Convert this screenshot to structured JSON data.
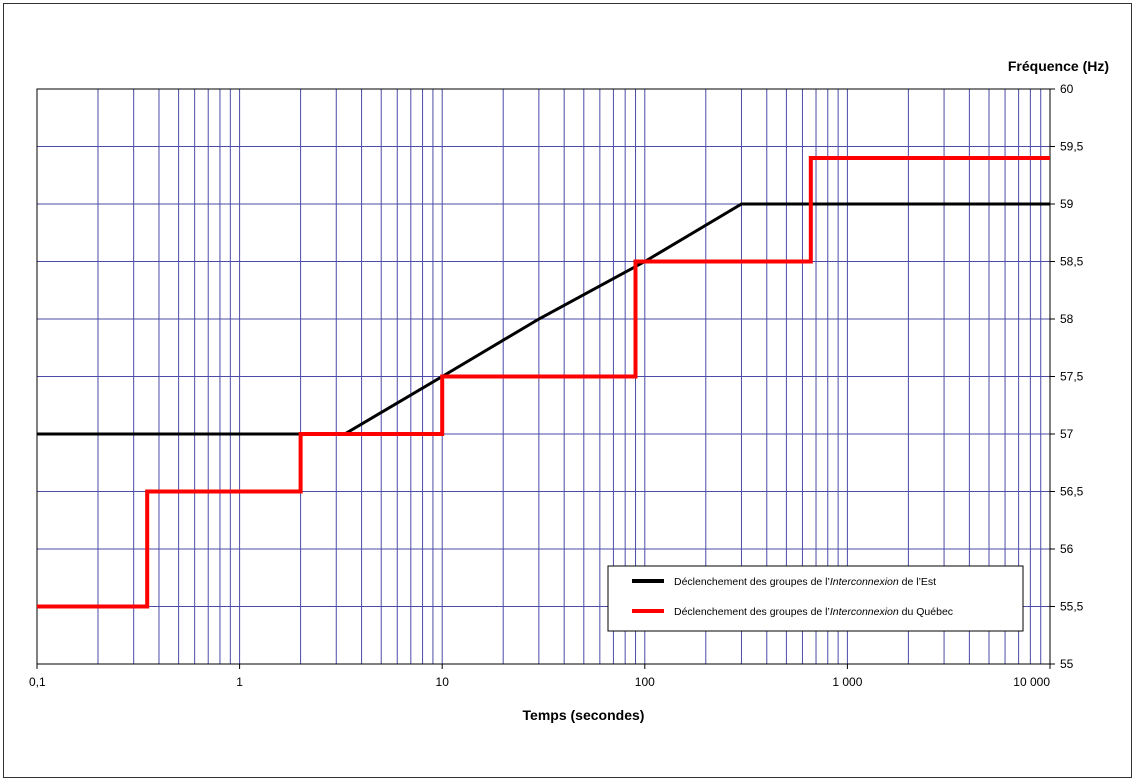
{
  "chart_data": {
    "type": "line",
    "x_scale": "log",
    "xlim": [
      0.1,
      10000
    ],
    "ylim": [
      55,
      60
    ],
    "grid": true,
    "xlabel": "Temps (secondes)",
    "ylabel": "Fréquence (Hz)",
    "x_tick_values": [
      0.1,
      1,
      10,
      100,
      1000,
      10000
    ],
    "x_tick_labels": [
      "0,1",
      "1",
      "10",
      "100",
      "1 000",
      "10 000"
    ],
    "y_tick_values": [
      55,
      55.5,
      56,
      56.5,
      57,
      57.5,
      58,
      58.5,
      59,
      59.5,
      60
    ],
    "y_tick_labels": [
      "55",
      "55,5",
      "56",
      "56,5",
      "57",
      "57,5",
      "58",
      "58,5",
      "59",
      "59,5",
      "60"
    ],
    "legend_position": "lower-right",
    "series": [
      {
        "name_parts": [
          "Déclenchement des groupes de l’",
          "Interconnexion",
          " de l’Est"
        ],
        "color": "#000000",
        "points": [
          [
            0.1,
            57
          ],
          [
            3.3,
            57
          ],
          [
            10,
            57.5
          ],
          [
            30,
            58
          ],
          [
            100,
            58.5
          ],
          [
            300,
            59
          ],
          [
            10000,
            59
          ]
        ]
      },
      {
        "name_parts": [
          "Déclenchement des groupes de l’",
          "Interconnexion",
          " du Québec"
        ],
        "color": "#ff0000",
        "points": [
          [
            0.1,
            55.5
          ],
          [
            0.35,
            55.5
          ],
          [
            0.35,
            56.5
          ],
          [
            2,
            56.5
          ],
          [
            2,
            57
          ],
          [
            10,
            57
          ],
          [
            10,
            57.5
          ],
          [
            90,
            57.5
          ],
          [
            90,
            58.5
          ],
          [
            660,
            58.5
          ],
          [
            660,
            59.4
          ],
          [
            10000,
            59.4
          ]
        ]
      }
    ]
  }
}
